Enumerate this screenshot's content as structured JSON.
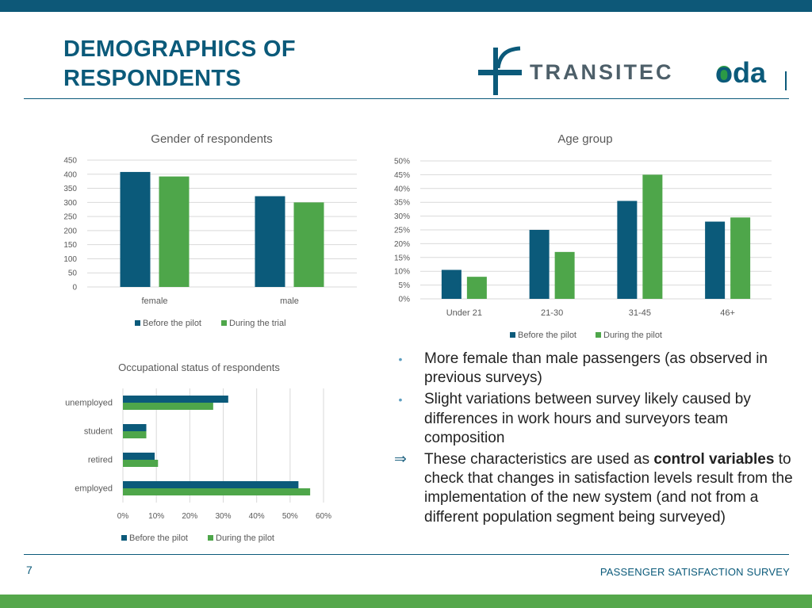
{
  "header": {
    "title_line1": "DEMOGRAPHICS OF",
    "title_line2": "RESPONDENTS"
  },
  "logos": {
    "transitec": "TRANSITEC",
    "oda": "oda"
  },
  "colors": {
    "series1": "#0b5a7a",
    "series2": "#4ea64a",
    "accent": "#0b5a7a",
    "band_top": "#0d5878",
    "band_bottom": "#55a74b"
  },
  "chart_data": [
    {
      "id": "gender",
      "type": "bar",
      "title": "Gender of respondents",
      "categories": [
        "female",
        "male"
      ],
      "series": [
        {
          "name": "Before the pilot",
          "values": [
            408,
            322
          ]
        },
        {
          "name": "During the trial",
          "values": [
            392,
            300
          ]
        }
      ],
      "ylim": [
        0,
        450
      ],
      "yticks": [
        0,
        50,
        100,
        150,
        200,
        250,
        300,
        350,
        400,
        450
      ],
      "ytick_labels": [
        "0",
        "50",
        "100",
        "150",
        "200",
        "250",
        "300",
        "350",
        "400",
        "450"
      ],
      "grid": true,
      "legend": "bottom"
    },
    {
      "id": "age",
      "type": "bar",
      "title": "Age group",
      "categories": [
        "Under 21",
        "21-30",
        "31-45",
        "46+"
      ],
      "series": [
        {
          "name": "Before the pilot",
          "values": [
            10.5,
            25,
            35.5,
            28
          ]
        },
        {
          "name": "During the pilot",
          "values": [
            8,
            17,
            45,
            29.5
          ]
        }
      ],
      "ylim": [
        0,
        50
      ],
      "yticks": [
        0,
        5,
        10,
        15,
        20,
        25,
        30,
        35,
        40,
        45,
        50
      ],
      "ytick_labels": [
        "0%",
        "5%",
        "10%",
        "15%",
        "20%",
        "25%",
        "30%",
        "35%",
        "40%",
        "45%",
        "50%"
      ],
      "grid": true,
      "legend": "bottom"
    },
    {
      "id": "occupation",
      "type": "bar",
      "orientation": "horizontal",
      "title": "Occupational status of respondents",
      "categories": [
        "unemployed",
        "student",
        "retired",
        "employed"
      ],
      "series": [
        {
          "name": "Before the pilot",
          "values": [
            31.5,
            7,
            9.5,
            52.5
          ]
        },
        {
          "name": "During the pilot",
          "values": [
            27,
            7,
            10.5,
            56
          ]
        }
      ],
      "xlim": [
        0,
        60
      ],
      "xticks": [
        0,
        10,
        20,
        30,
        40,
        50,
        60
      ],
      "xtick_labels": [
        "0%",
        "10%",
        "20%",
        "30%",
        "40%",
        "50%",
        "60%"
      ],
      "grid": true,
      "legend": "bottom"
    }
  ],
  "bullets": [
    {
      "marker": "•",
      "text": "More female than male passengers (as observed in previous surveys)"
    },
    {
      "marker": "•",
      "text": "Slight variations between survey likely caused by differences in work hours and surveyors team composition"
    },
    {
      "marker": "⇒",
      "pre": "These characteristics are used as ",
      "bold": "control variables",
      "post": " to check that changes in satisfaction levels result from the implementation of the new system (and not from a different population segment being surveyed)"
    }
  ],
  "footer": {
    "page": "7",
    "label": "PASSENGER SATISFACTION SURVEY"
  }
}
